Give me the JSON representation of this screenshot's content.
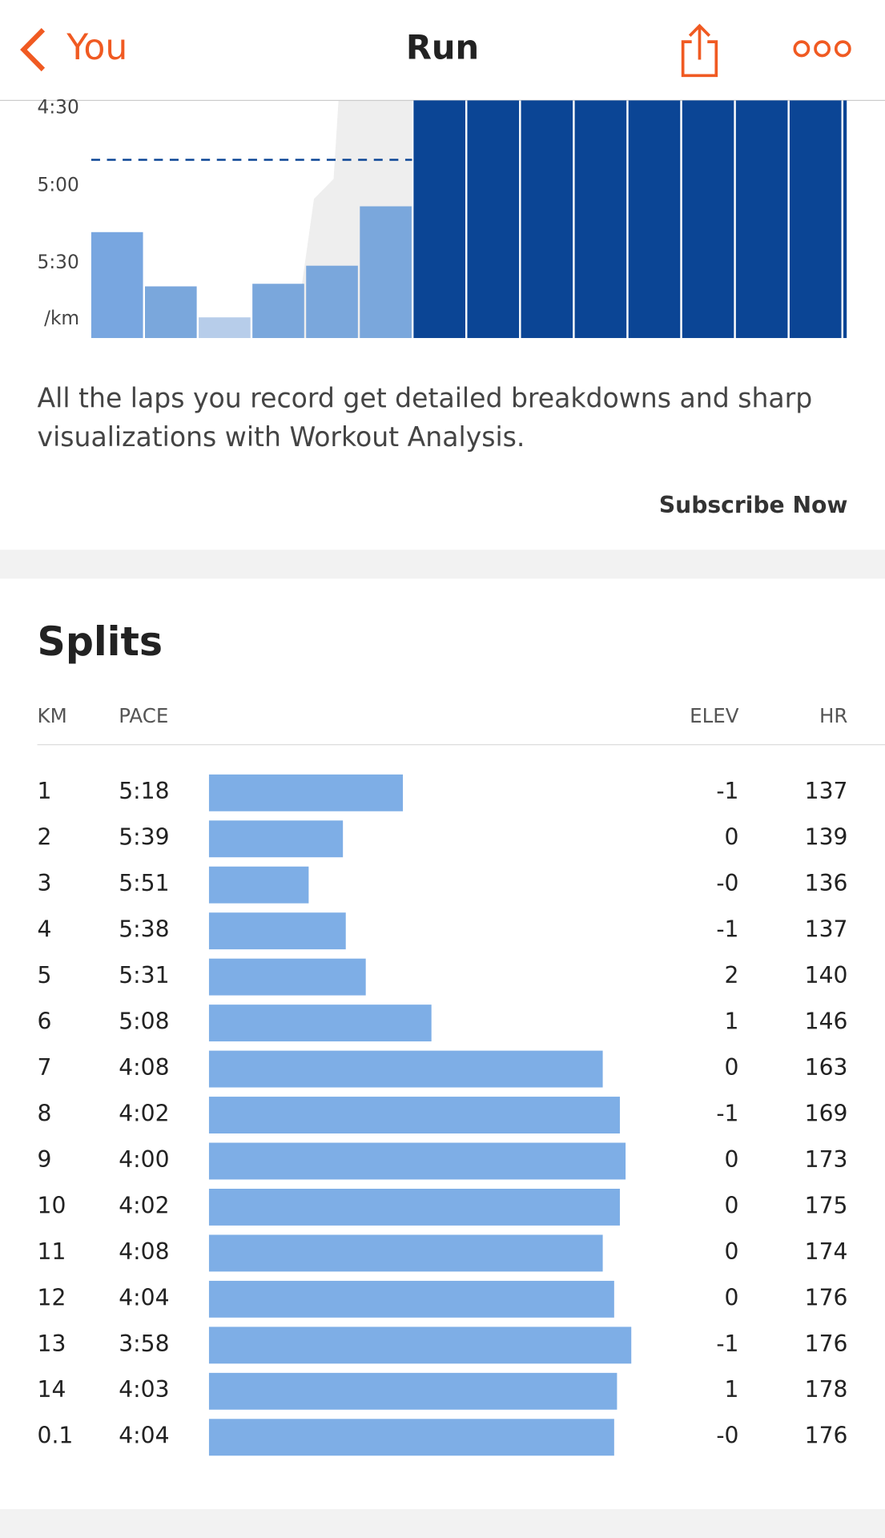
{
  "header": {
    "back": "You",
    "title": "Run"
  },
  "chart_data": {
    "type": "bar",
    "ylim": [
      267,
      359
    ],
    "yticks": [
      {
        "value": 270,
        "label": "4:30"
      },
      {
        "value": 300,
        "label": "5:00"
      },
      {
        "value": 330,
        "label": "5:30"
      }
    ],
    "unit_label": "/km",
    "reference_line": 290,
    "bar_colors": [
      "#78a6e0",
      "#7aa7dc",
      "#b7cdea",
      "#7aa7dc",
      "#7aa7dc",
      "#7aa7dc",
      "#0b4595",
      "#0b4595",
      "#0b4595",
      "#0b4595",
      "#0b4595",
      "#0b4595",
      "#0b4595",
      "#0b4595",
      "#0b4595"
    ]
  },
  "promo": {
    "text": "All the laps you record get detailed breakdowns and sharp",
    "text2": "visualizations with Workout Analysis.",
    "button": "Subscribe Now"
  },
  "splits": {
    "title": "Splits",
    "columns": [
      "KM",
      "PACE",
      "ELEV",
      "HR"
    ],
    "rows": [
      {
        "km": "1",
        "pace": {
          "value": 318,
          "label": "5:18"
        },
        "elev": "-1",
        "hr": 137
      },
      {
        "km": "2",
        "pace": {
          "value": 339,
          "label": "5:39"
        },
        "elev": "0",
        "hr": 139
      },
      {
        "km": "3",
        "pace": {
          "value": 351,
          "label": "5:51"
        },
        "elev": "-0",
        "hr": 136
      },
      {
        "km": "4",
        "pace": {
          "value": 338,
          "label": "5:38"
        },
        "elev": "-1",
        "hr": 137
      },
      {
        "km": "5",
        "pace": {
          "value": 331,
          "label": "5:31"
        },
        "elev": "2",
        "hr": 140
      },
      {
        "km": "6",
        "pace": {
          "value": 308,
          "label": "5:08"
        },
        "elev": "1",
        "hr": 146
      },
      {
        "km": "7",
        "pace": {
          "value": 248,
          "label": "4:08"
        },
        "elev": "0",
        "hr": 163
      },
      {
        "km": "8",
        "pace": {
          "value": 242,
          "label": "4:02"
        },
        "elev": "-1",
        "hr": 169
      },
      {
        "km": "9",
        "pace": {
          "value": 240,
          "label": "4:00"
        },
        "elev": "0",
        "hr": 173
      },
      {
        "km": "10",
        "pace": {
          "value": 242,
          "label": "4:02"
        },
        "elev": "0",
        "hr": 175
      },
      {
        "km": "11",
        "pace": {
          "value": 248,
          "label": "4:08"
        },
        "elev": "0",
        "hr": 174
      },
      {
        "km": "12",
        "pace": {
          "value": 244,
          "label": "4:04"
        },
        "elev": "0",
        "hr": 176
      },
      {
        "km": "13",
        "pace": {
          "value": 238,
          "label": "3:58"
        },
        "elev": "-1",
        "hr": 176
      },
      {
        "km": "14",
        "pace": {
          "value": 243,
          "label": "4:03"
        },
        "elev": "1",
        "hr": 178
      },
      {
        "km": "0.1",
        "pace": {
          "value": 244,
          "label": "4:04"
        },
        "elev": "-0",
        "hr": 176
      }
    ]
  }
}
